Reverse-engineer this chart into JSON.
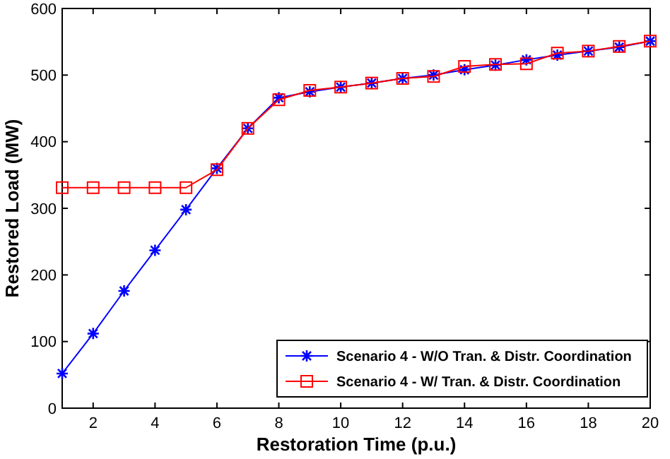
{
  "chart_data": {
    "type": "line",
    "xlabel": "Restoration Time (p.u.)",
    "ylabel": "Restored Load (MW)",
    "x": [
      1,
      2,
      3,
      4,
      5,
      6,
      7,
      8,
      9,
      10,
      11,
      12,
      13,
      14,
      15,
      16,
      17,
      18,
      19,
      20
    ],
    "xlim": [
      1,
      20
    ],
    "xticks": [
      2,
      4,
      6,
      8,
      10,
      12,
      14,
      16,
      18,
      20
    ],
    "ylim": [
      0,
      600
    ],
    "yticks": [
      0,
      100,
      200,
      300,
      400,
      500,
      600
    ],
    "grid": false,
    "legend": "bottom right",
    "series": [
      {
        "name": "Scenario 4 - W/O Tran. & Distr. Coordination",
        "color": "#0000ff",
        "marker": "cross",
        "values": [
          52,
          112,
          176,
          237,
          298,
          360,
          420,
          466,
          475,
          482,
          488,
          495,
          500,
          508,
          515,
          523,
          530,
          536,
          542,
          551
        ]
      },
      {
        "name": "Scenario 4 - W/ Tran. & Distr. Coordination",
        "color": "#ff0000",
        "marker": "square",
        "values": [
          331,
          331,
          331,
          331,
          331,
          358,
          420,
          463,
          477,
          482,
          488,
          495,
          498,
          513,
          516,
          517,
          533,
          536,
          543,
          551
        ]
      }
    ]
  }
}
